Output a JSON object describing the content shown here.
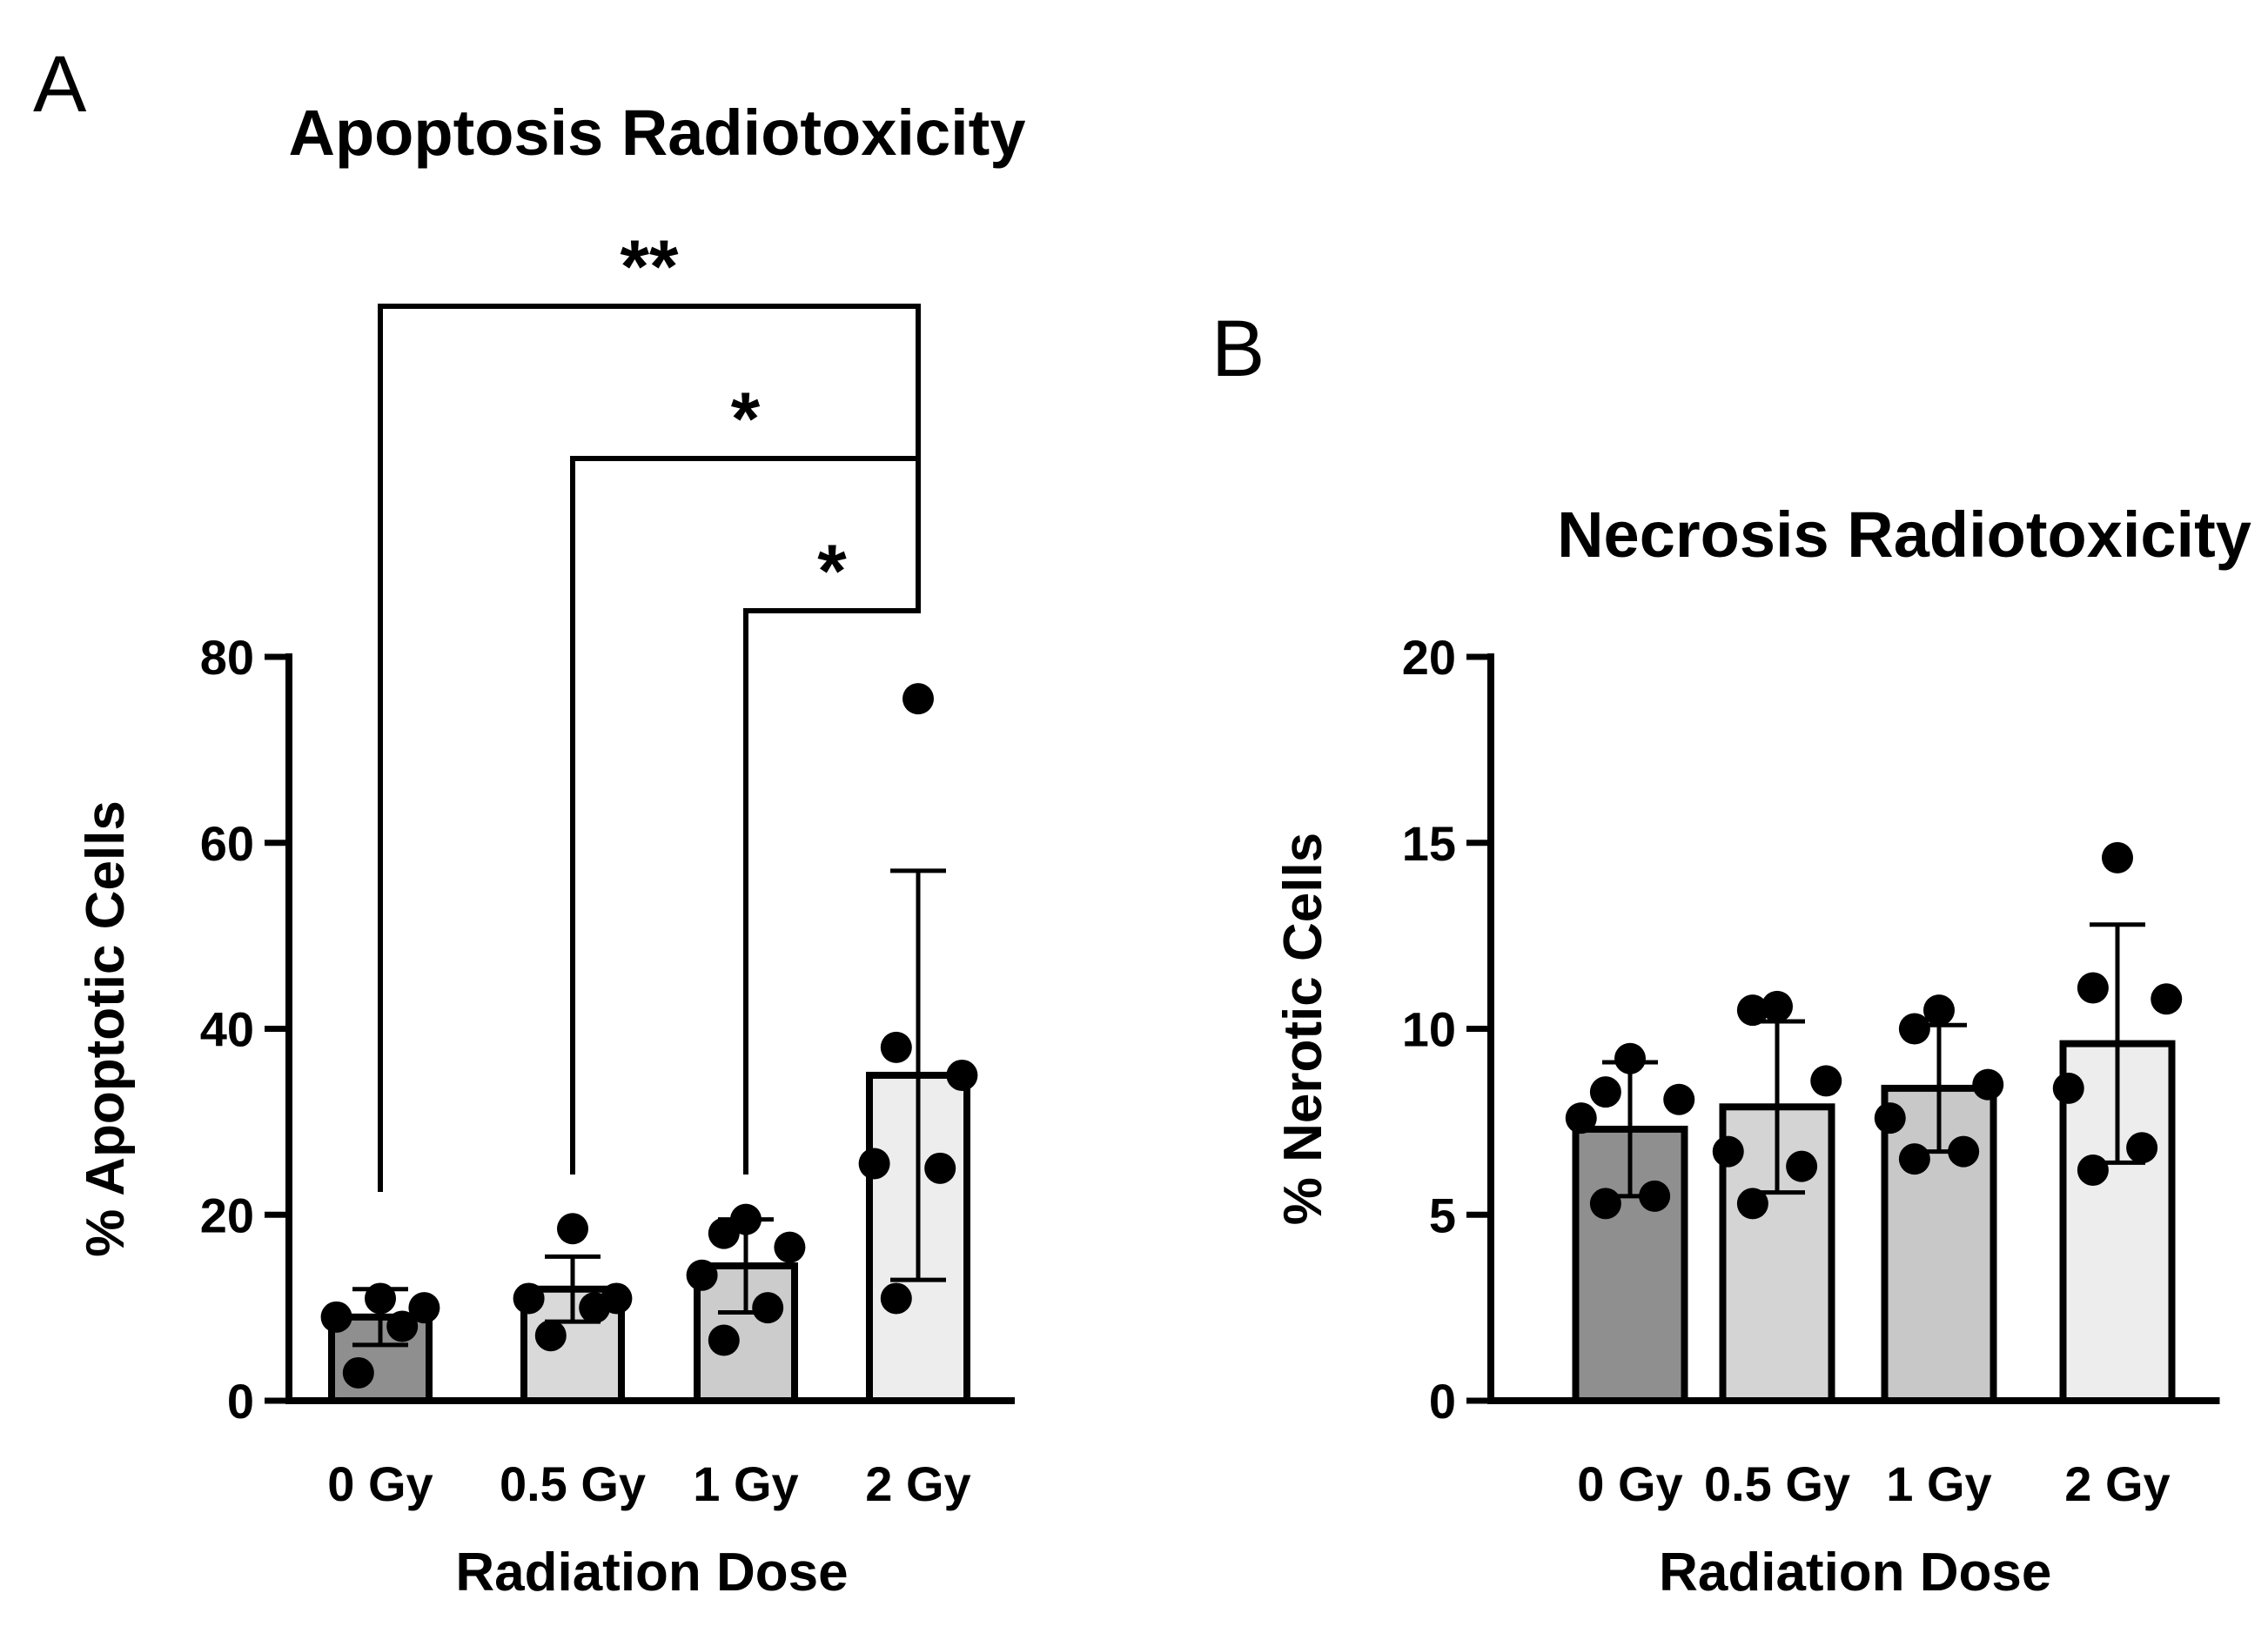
{
  "chart_data": [
    {
      "panel_letter": "A",
      "type": "bar",
      "title": "Apoptosis Radiotoxicity",
      "xlabel": "Radiation Dose",
      "ylabel": "% Apoptotic Cells",
      "categories": [
        "0 Gy",
        "0.5 Gy",
        "1 Gy",
        "2 Gy"
      ],
      "values": [
        9,
        12,
        14.5,
        35
      ],
      "error": [
        3,
        3.5,
        5,
        22
      ],
      "bar_colors": [
        "#8f8f8f",
        "#d9d9d9",
        "#cccccc",
        "#ededed"
      ],
      "points": [
        [
          3,
          8,
          9,
          10,
          11
        ],
        [
          7,
          10,
          11,
          11,
          18.5
        ],
        [
          6.5,
          10,
          13.5,
          16.5,
          18,
          19.5
        ],
        [
          11,
          25,
          25.5,
          35,
          38,
          75.5
        ]
      ],
      "ylim": [
        0,
        80
      ],
      "yticks": [
        0,
        20,
        40,
        60,
        80
      ],
      "significance": [
        {
          "from": 0,
          "to": 3,
          "label": "**"
        },
        {
          "from": 1,
          "to": 3,
          "label": "*"
        },
        {
          "from": 2,
          "to": 3,
          "label": "*"
        }
      ]
    },
    {
      "panel_letter": "B",
      "type": "bar",
      "title": "Necrosis Radiotoxicity",
      "xlabel": "Radiation Dose",
      "ylabel": "% Nerotic Cells",
      "categories": [
        "0 Gy",
        "0.5 Gy",
        "1 Gy",
        "2 Gy"
      ],
      "values": [
        7.3,
        7.9,
        8.4,
        9.6
      ],
      "error": [
        1.8,
        2.3,
        1.7,
        3.2
      ],
      "bar_colors": [
        "#8f8f8f",
        "#d4d4d4",
        "#c8c8c8",
        "#ededed"
      ],
      "points": [
        [
          5.3,
          5.5,
          7.6,
          8.1,
          8.3,
          9.2
        ],
        [
          5.3,
          6.3,
          6.7,
          8.6,
          10.5,
          10.6
        ],
        [
          6.5,
          6.7,
          7.6,
          8.5,
          10,
          10.5
        ],
        [
          6.2,
          6.8,
          8.4,
          10.8,
          11.1,
          14.6
        ]
      ],
      "ylim": [
        0,
        20
      ],
      "yticks": [
        0,
        5,
        10,
        15,
        20
      ],
      "significance": []
    }
  ]
}
